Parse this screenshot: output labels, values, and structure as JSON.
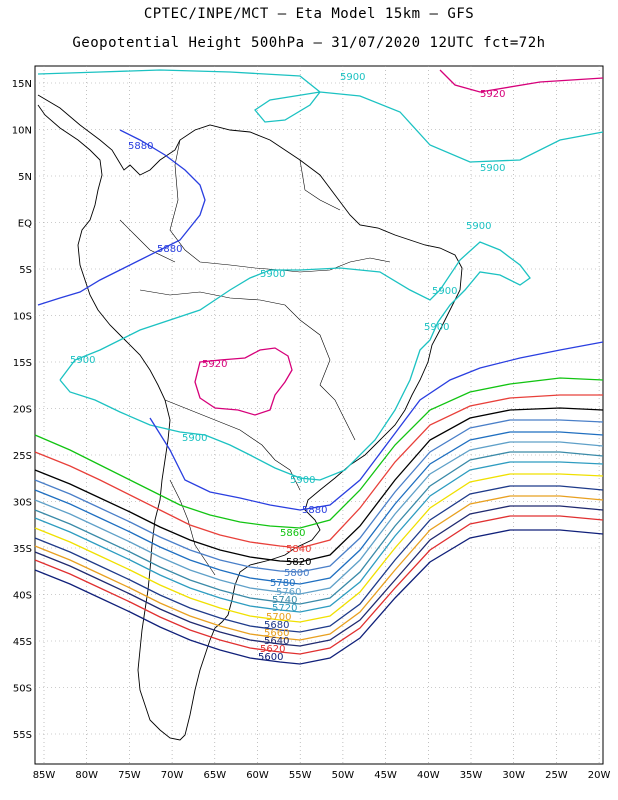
{
  "title_line1": "CPTEC/INPE/MCT –  Eta Model 15km – GFS",
  "title_line2": "Geopotential Height 500hPa – 31/07/2020 12UTC fct=72h",
  "lat_ticks": [
    "15N",
    "10N",
    "5N",
    "EQ",
    "5S",
    "10S",
    "15S",
    "20S",
    "25S",
    "30S",
    "35S",
    "40S",
    "45S",
    "50S",
    "55S"
  ],
  "lon_ticks": [
    "85W",
    "80W",
    "75W",
    "70W",
    "65W",
    "60W",
    "55W",
    "50W",
    "45W",
    "40W",
    "35W",
    "30W",
    "25W",
    "20W"
  ],
  "contours": [
    {
      "value": "5920",
      "color": "#d6007a"
    },
    {
      "value": "5900",
      "color": "#1cc2c2"
    },
    {
      "value": "5880",
      "color": "#2a3fe0"
    },
    {
      "value": "5860",
      "color": "#12c412"
    },
    {
      "value": "5840",
      "color": "#e8403a"
    },
    {
      "value": "5820",
      "color": "#000000"
    },
    {
      "value": "5800",
      "color": "#4a7fc8"
    },
    {
      "value": "5780",
      "color": "#1f6fc0"
    },
    {
      "value": "5760",
      "color": "#5fa0c8"
    },
    {
      "value": "5740",
      "color": "#3a8aa8"
    },
    {
      "value": "5720",
      "color": "#2e9cc0"
    },
    {
      "value": "5700",
      "color": "#f0e000"
    },
    {
      "value": "5680",
      "color": "#1e3a8a"
    },
    {
      "value": "5660",
      "color": "#e8a020"
    },
    {
      "value": "5640",
      "color": "#202a70"
    },
    {
      "value": "5620",
      "color": "#e03030"
    },
    {
      "value": "5600",
      "color": "#10207a"
    }
  ]
}
